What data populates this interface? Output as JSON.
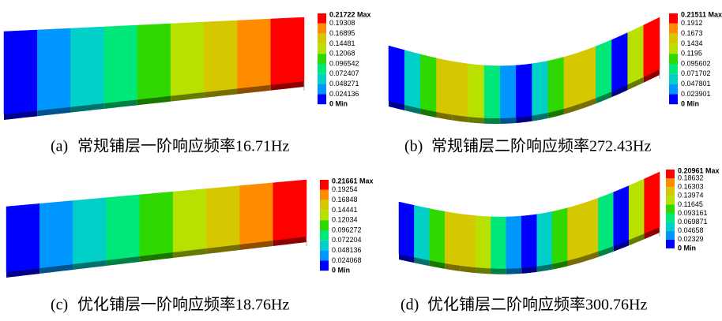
{
  "panels": [
    {
      "label": "(a)",
      "caption": "常规铺层一阶响应频率16.71Hz",
      "legend": [
        "0.21722 Max",
        "0.19308",
        "0.16895",
        "0.14481",
        "0.12068",
        "0.096542",
        "0.072407",
        "0.048271",
        "0.024136",
        "0 Min"
      ]
    },
    {
      "label": "(b)",
      "caption": "常规铺层二阶响应频率272.43Hz",
      "legend": [
        "0.21511 Max",
        "0.1912",
        "0.1673",
        "0.1434",
        "0.1195",
        "0.095602",
        "0.071702",
        "0.047801",
        "0.023901",
        "0 Min"
      ]
    },
    {
      "label": "(c)",
      "caption": "优化铺层一阶响应频率18.76Hz",
      "legend": [
        "0.21661 Max",
        "0.19254",
        "0.16848",
        "0.14441",
        "0.12034",
        "0.096272",
        "0.072204",
        "0.048136",
        "0.024068",
        "0 Min"
      ]
    },
    {
      "label": "(d)",
      "caption": "优化铺层二阶响应频率300.76Hz",
      "legend": [
        "0.20961 Max",
        "0.18632",
        "0.16303",
        "0.13974",
        "0.11645",
        "0.093161",
        "0.069871",
        "0.04658",
        "0.02329",
        "0 Min"
      ]
    }
  ]
}
